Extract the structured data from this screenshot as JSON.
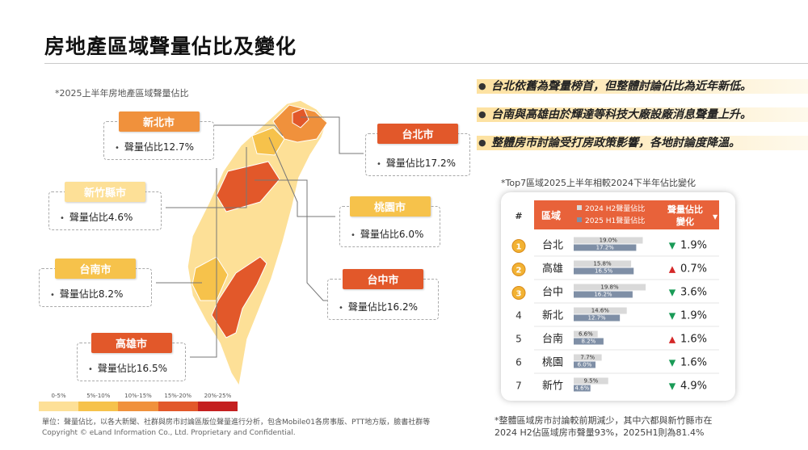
{
  "page": {
    "title": "房地產區域聲量佔比及變化",
    "map_caption": "*2025上半年房地產區域聲量佔比",
    "table_caption": "*Top7區域2025上半年相較2024下半年佔比變化",
    "footnote": "單位：聲量佔比，以各大新聞、社群與房市討論區版位聲量進行分析，包含Mobile01各房事版、PTT地方版，臉書社群等",
    "copyright": "Copyright © eLand Information Co., Ltd. Proprietary and Confidential.",
    "note_line1": "*整體區域房市討論較前期減少，其中六都與新竹縣市在",
    "note_line2": "2024 H2佔區域房市聲量93%，2025H1則為81.4%"
  },
  "bullets": [
    "台北依舊為聲量榜首，但整體討論佔比為近年新低。",
    "台南與高雄由於輝達等科技大廠設廠消息聲量上升。",
    "整體房市討論受打房政策影響，各地討論度降溫。"
  ],
  "map_callouts": [
    {
      "name": "新北市",
      "value_text": "聲量佔比12.7%",
      "share": 12.7,
      "color": "#f0913c"
    },
    {
      "name": "台北市",
      "value_text": "聲量佔比17.2%",
      "share": 17.2,
      "color": "#e2582a"
    },
    {
      "name": "新竹縣市",
      "value_text": "聲量佔比4.6%",
      "share": 4.6,
      "color": "#fde097"
    },
    {
      "name": "桃園市",
      "value_text": "聲量佔比6.0%",
      "share": 6.0,
      "color": "#f6c24b"
    },
    {
      "name": "台南市",
      "value_text": "聲量佔比8.2%",
      "share": 8.2,
      "color": "#f6c24b"
    },
    {
      "name": "台中市",
      "value_text": "聲量佔比16.2%",
      "share": 16.2,
      "color": "#e2582a"
    },
    {
      "name": "高雄市",
      "value_text": "聲量佔比16.5%",
      "share": 16.5,
      "color": "#e2582a"
    }
  ],
  "legend": {
    "labels": [
      "0-5%",
      "5%-10%",
      "10%-15%",
      "15%-20%",
      "20%-25%"
    ],
    "colors": [
      "#fde097",
      "#f6c24b",
      "#f0913c",
      "#e2582a",
      "#c41f1f"
    ]
  },
  "chart_data": {
    "type": "bar",
    "headers": {
      "rank": "#",
      "region": "區域",
      "legend_h2": "2024 H2聲量佔比",
      "legend_h1": "2025 H1聲量佔比",
      "change": "聲量佔比變化"
    },
    "colors": {
      "h2": "#d9d9d9",
      "h1": "#7f8fa6",
      "header": "#e8623a",
      "down": "#1a9b57",
      "up": "#d42828"
    },
    "categories": [
      "台北",
      "高雄",
      "台中",
      "新北",
      "台南",
      "桃園",
      "新竹"
    ],
    "ranks": [
      "1",
      "2",
      "3",
      "4",
      "5",
      "6",
      "7"
    ],
    "series": [
      {
        "name": "2024 H2聲量佔比",
        "values": [
          19.0,
          15.8,
          19.8,
          14.6,
          6.6,
          7.7,
          9.5
        ],
        "labels": [
          "19.0%",
          "15.8%",
          "19.8%",
          "14.6%",
          "6.6%",
          "7.7%",
          "9.5%"
        ]
      },
      {
        "name": "2025 H1聲量佔比",
        "values": [
          17.2,
          16.5,
          16.2,
          12.7,
          8.2,
          6.0,
          4.6
        ],
        "labels": [
          "17.2%",
          "16.5%",
          "16.2%",
          "12.7%",
          "8.2%",
          "6.0%",
          "4.6%"
        ]
      }
    ],
    "change": [
      {
        "dir": "down",
        "text": "1.9%"
      },
      {
        "dir": "up",
        "text": "0.7%"
      },
      {
        "dir": "down",
        "text": "3.6%"
      },
      {
        "dir": "down",
        "text": "1.9%"
      },
      {
        "dir": "up",
        "text": "1.6%"
      },
      {
        "dir": "down",
        "text": "1.6%"
      },
      {
        "dir": "down",
        "text": "4.9%"
      }
    ],
    "xlim": [
      0,
      20
    ]
  }
}
